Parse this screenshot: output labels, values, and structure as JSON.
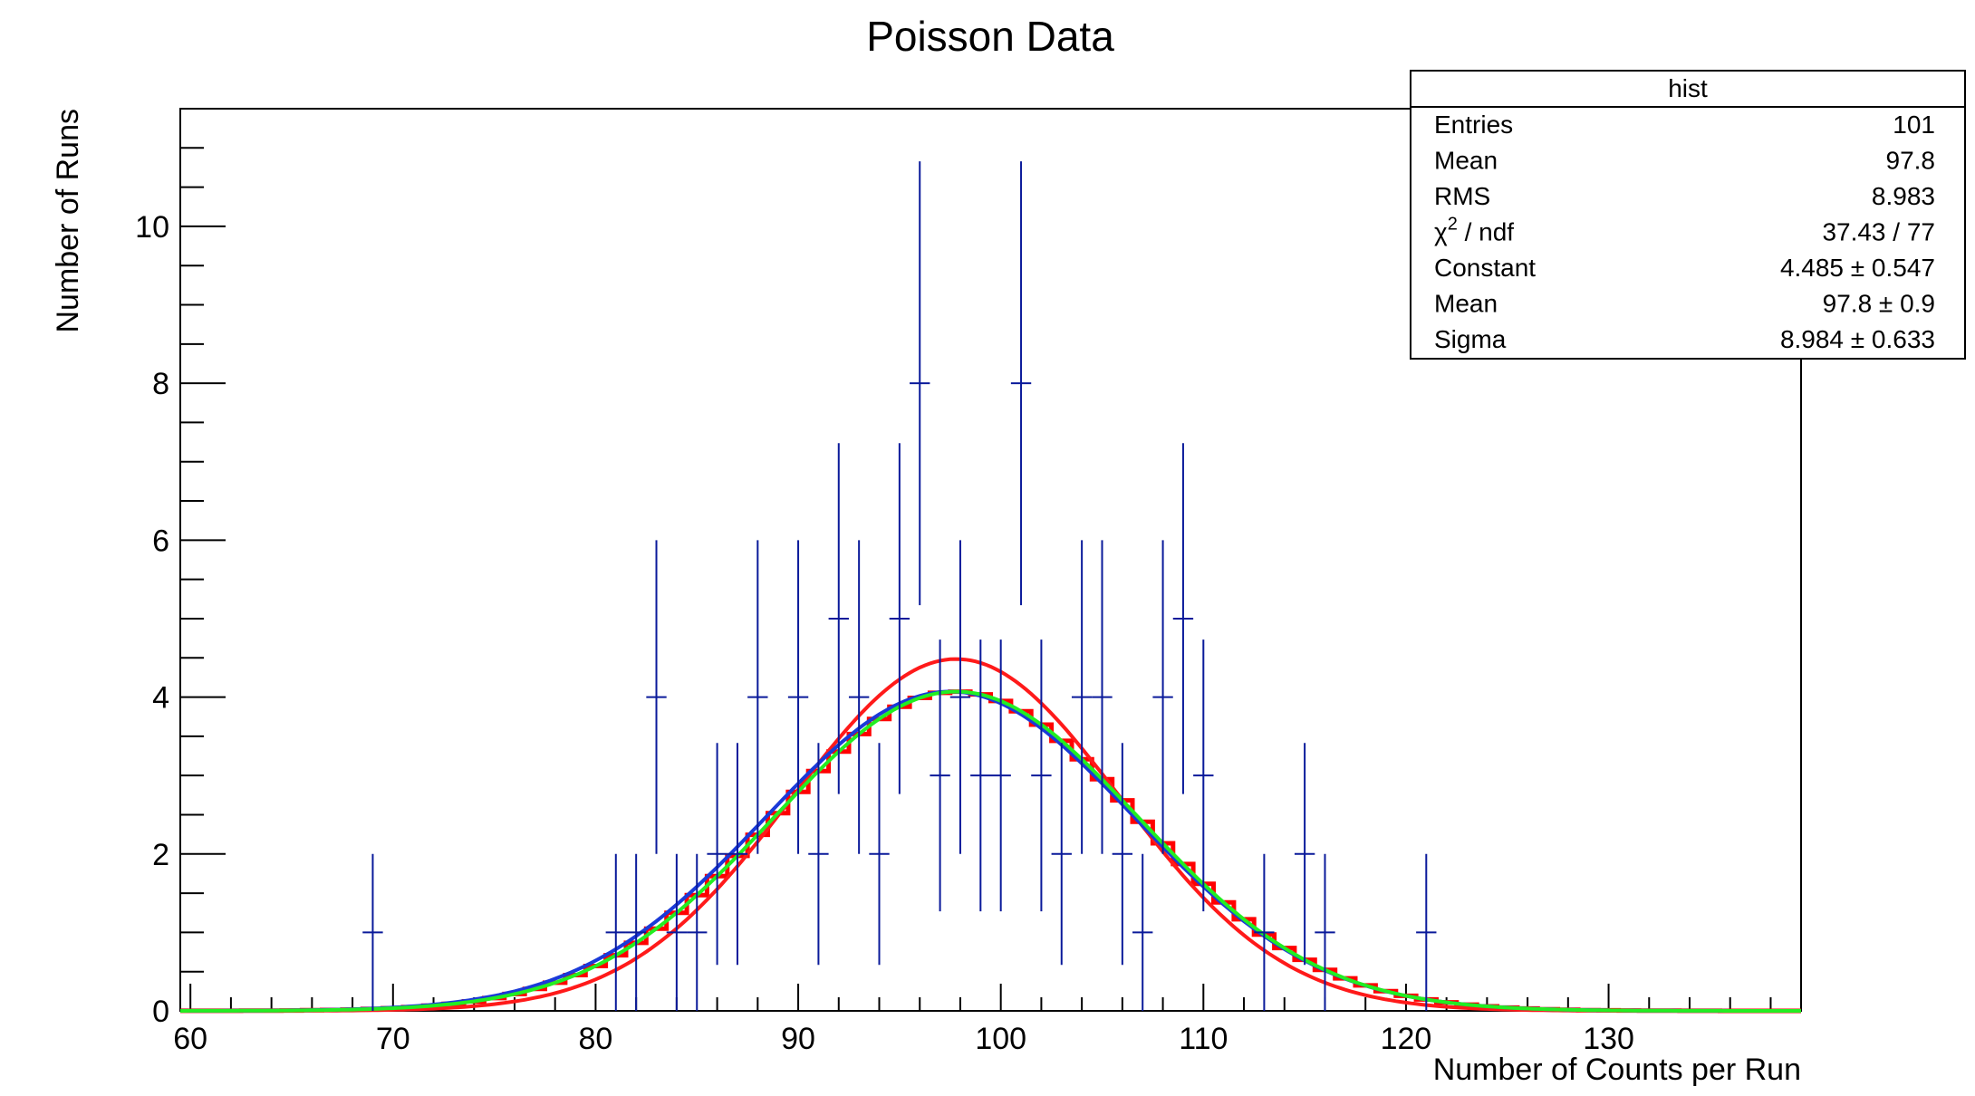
{
  "chart_data": {
    "type": "histogram",
    "title": "Poisson Data",
    "xlabel": "Number of Counts per Run",
    "ylabel": "Number of Runs",
    "xlim": [
      59.5,
      139.5
    ],
    "ylim": [
      0,
      11.5
    ],
    "x_ticks": [
      60,
      70,
      80,
      90,
      100,
      110,
      120,
      130
    ],
    "y_ticks": [
      0,
      2,
      4,
      6,
      8,
      10
    ],
    "colors": {
      "data_points": "#0a1a9a",
      "histogram_steps": "#ff0000",
      "curve_red": "#ff1a1a",
      "curve_blue": "#1a3ad8",
      "curve_green": "#22ee22"
    },
    "data_points": [
      {
        "x": 69,
        "y": 1
      },
      {
        "x": 81,
        "y": 1
      },
      {
        "x": 82,
        "y": 1
      },
      {
        "x": 83,
        "y": 4
      },
      {
        "x": 84,
        "y": 1
      },
      {
        "x": 85,
        "y": 1
      },
      {
        "x": 86,
        "y": 2
      },
      {
        "x": 87,
        "y": 2
      },
      {
        "x": 88,
        "y": 4
      },
      {
        "x": 90,
        "y": 4
      },
      {
        "x": 91,
        "y": 2
      },
      {
        "x": 92,
        "y": 5
      },
      {
        "x": 93,
        "y": 4
      },
      {
        "x": 94,
        "y": 2
      },
      {
        "x": 95,
        "y": 5
      },
      {
        "x": 96,
        "y": 8
      },
      {
        "x": 97,
        "y": 3
      },
      {
        "x": 98,
        "y": 4
      },
      {
        "x": 99,
        "y": 3
      },
      {
        "x": 100,
        "y": 3
      },
      {
        "x": 101,
        "y": 8
      },
      {
        "x": 102,
        "y": 3
      },
      {
        "x": 103,
        "y": 2
      },
      {
        "x": 104,
        "y": 4
      },
      {
        "x": 105,
        "y": 4
      },
      {
        "x": 106,
        "y": 2
      },
      {
        "x": 107,
        "y": 1
      },
      {
        "x": 108,
        "y": 4
      },
      {
        "x": 109,
        "y": 5
      },
      {
        "x": 110,
        "y": 3
      },
      {
        "x": 113,
        "y": 1
      },
      {
        "x": 115,
        "y": 2
      },
      {
        "x": 116,
        "y": 1
      },
      {
        "x": 121,
        "y": 1
      }
    ],
    "gaussian_fits": [
      {
        "color": "red",
        "constant": 4.485,
        "mean": 97.8,
        "sigma": 8.1
      },
      {
        "color": "blue",
        "constant": 4.07,
        "mean": 97.5,
        "sigma": 9.1
      },
      {
        "color": "green",
        "constant": 4.07,
        "mean": 97.8,
        "sigma": 8.984
      }
    ],
    "stats_box": {
      "title": "hist",
      "rows": [
        {
          "label": "Entries",
          "value": "101"
        },
        {
          "label": "Mean",
          "value": "97.8"
        },
        {
          "label": "RMS",
          "value": "8.983"
        },
        {
          "label_sym": "χ",
          "label_sup": "2",
          "label_rest": " / ndf",
          "value": "37.43 / 77"
        },
        {
          "label": "Constant",
          "value": "4.485 ± 0.547"
        },
        {
          "label": "Mean",
          "value": "97.8 ± 0.9"
        },
        {
          "label": "Sigma",
          "value": "8.984 ± 0.633"
        }
      ]
    }
  }
}
